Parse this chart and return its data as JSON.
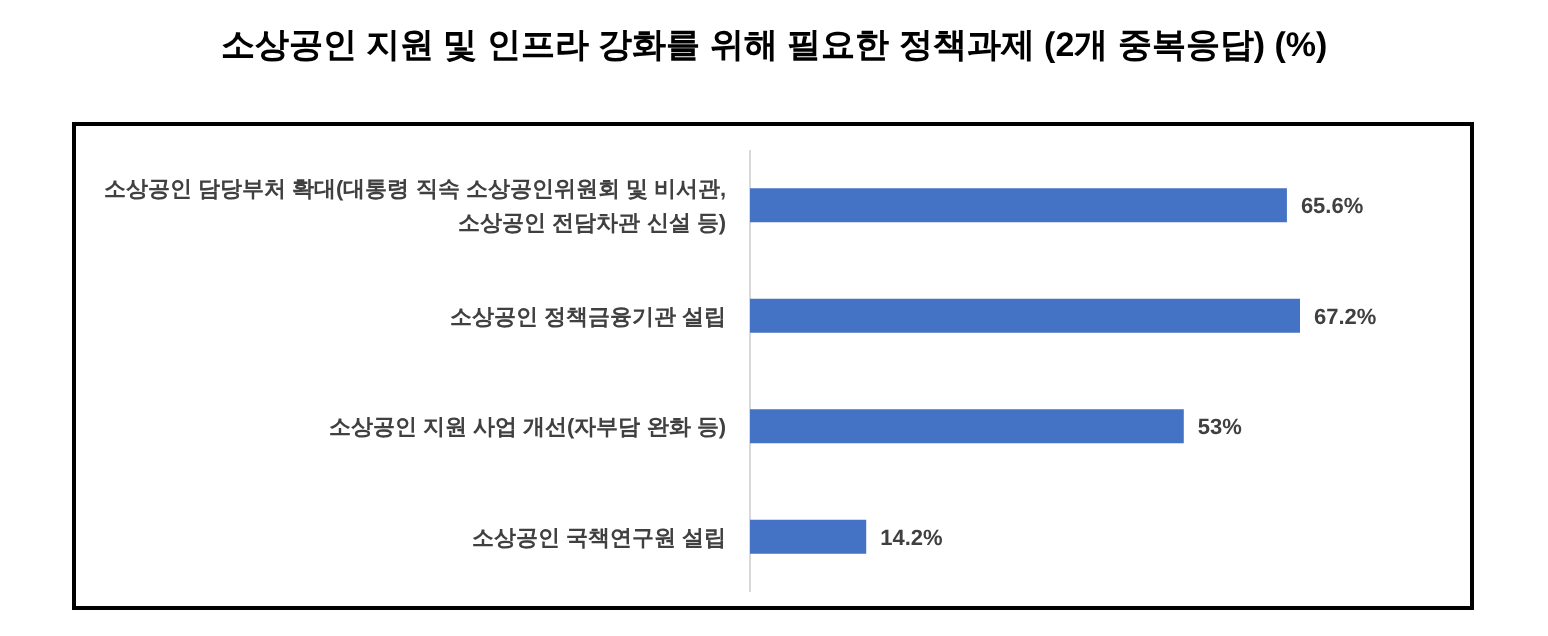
{
  "chart_data": {
    "type": "bar",
    "orientation": "horizontal",
    "title": "소상공인 지원 및 인프라 강화를 위해 필요한 정책과제 (2개 중복응답) (%)",
    "categories": [
      "소상공인 담당부처 확대(대통령 직속 소상공인위원회 및 비서관, 소상공인 전담차관 신설 등)",
      "소상공인 정책금융기관 설립",
      "소상공인 지원 사업 개선(자부담 완화 등)",
      "소상공인 국책연구원 설립"
    ],
    "series": [
      {
        "color": "#4472c4",
        "values": [
          65.6,
          67.2,
          53,
          14.2
        ],
        "value_labels": [
          "65.6%",
          "67.2%",
          "53%",
          "14.2%"
        ]
      }
    ],
    "data_labels": true
  }
}
